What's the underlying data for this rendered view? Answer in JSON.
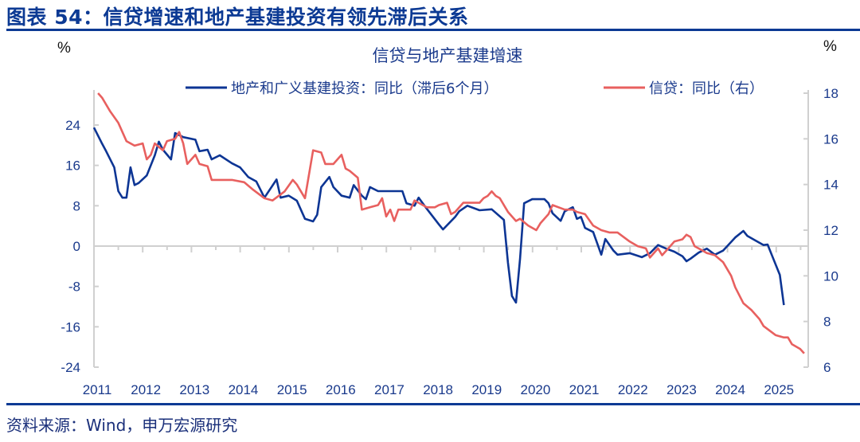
{
  "header": {
    "title": "图表 54：信贷增速和地产基建投资有领先滞后关系"
  },
  "footer": {
    "source": "资料来源：Wind，申万宏源研究"
  },
  "chart_data": {
    "type": "line",
    "title": "信贷与地产基建增速",
    "left_unit": "%",
    "right_unit": "%",
    "xlim": [
      "2011-01",
      "2025-09"
    ],
    "x_ticks": [
      "2011",
      "2012",
      "2013",
      "2014",
      "2015",
      "2016",
      "2017",
      "2018",
      "2019",
      "2020",
      "2021",
      "2022",
      "2023",
      "2024",
      "2025"
    ],
    "left_ylim": [
      -24,
      30
    ],
    "left_ticks": [
      "24",
      "16",
      "8",
      "0",
      "-8",
      "-16",
      "-24"
    ],
    "right_ylim": [
      6,
      18
    ],
    "right_ticks": [
      "18",
      "16",
      "14",
      "12",
      "10",
      "8",
      "6"
    ],
    "legend_position": "top",
    "grid": false,
    "series": [
      {
        "name": "地产和广义基建投资：同比（滞后6个月）",
        "axis": "left",
        "color": "#0d3594",
        "x": [
          "2011-01",
          "2011-03",
          "2011-04",
          "2011-06",
          "2011-07",
          "2011-08",
          "2011-09",
          "2011-10",
          "2011-11",
          "2011-12",
          "2012-02",
          "2012-04",
          "2012-05",
          "2012-06",
          "2012-08",
          "2012-09",
          "2012-11",
          "2013-02",
          "2013-03",
          "2013-05",
          "2013-06",
          "2013-08",
          "2013-11",
          "2014-01",
          "2014-03",
          "2014-05",
          "2014-07",
          "2014-10",
          "2014-11",
          "2015-01",
          "2015-03",
          "2015-05",
          "2015-07",
          "2015-08",
          "2015-09",
          "2015-11",
          "2015-12",
          "2016-02",
          "2016-04",
          "2016-05",
          "2016-07",
          "2016-08",
          "2016-09",
          "2016-11",
          "2017-02",
          "2017-05",
          "2017-06",
          "2017-08",
          "2017-09",
          "2017-11",
          "2018-02",
          "2018-03",
          "2018-06",
          "2018-07",
          "2018-09",
          "2018-12",
          "2019-03",
          "2019-06",
          "2019-07",
          "2019-08",
          "2019-09",
          "2019-10",
          "2019-11",
          "2020-01",
          "2020-04",
          "2020-05",
          "2020-06",
          "2020-08",
          "2020-09",
          "2020-11",
          "2020-12",
          "2021-01",
          "2021-02",
          "2021-04",
          "2021-06",
          "2021-07",
          "2021-09",
          "2021-10",
          "2022-01",
          "2022-04",
          "2022-06",
          "2022-08",
          "2022-10",
          "2022-12",
          "2023-02",
          "2023-03",
          "2023-04",
          "2023-06",
          "2023-08",
          "2023-10",
          "2023-12",
          "2024-03",
          "2024-05",
          "2024-06",
          "2024-08",
          "2024-10",
          "2024-11",
          "2024-12",
          "2025-02",
          "2025-03"
        ],
        "values": [
          23.5,
          20.3,
          18.8,
          15.6,
          10.9,
          9.6,
          9.6,
          15.6,
          12.1,
          12.5,
          14,
          18,
          20.7,
          19.1,
          17.2,
          22.4,
          21.6,
          21.1,
          18.8,
          19.1,
          17.2,
          18,
          16.4,
          15.6,
          13.7,
          12.8,
          9.6,
          13.2,
          9.6,
          10,
          9,
          5.4,
          4.9,
          6.2,
          11.7,
          13.7,
          11.7,
          10,
          9.6,
          12.1,
          10,
          9.3,
          11.7,
          10.9,
          10.9,
          10.9,
          8.5,
          8,
          9.6,
          7.4,
          4.3,
          3.3,
          5.8,
          6.9,
          8,
          7.1,
          7.3,
          5.2,
          -3.3,
          -9.9,
          -11.2,
          -2.5,
          8.5,
          9.3,
          9.3,
          8.5,
          6.5,
          5,
          6.9,
          7.7,
          5.4,
          5.8,
          3.6,
          2.8,
          -1.7,
          1.4,
          -0.9,
          -1.7,
          -1.4,
          -2.2,
          -1.4,
          0.2,
          -0.5,
          -1.1,
          -2,
          -3,
          -2.5,
          -1.3,
          -0.5,
          -1.7,
          -0.9,
          1.7,
          3,
          2,
          1.1,
          0.2,
          0.3,
          -1.7,
          -5.7,
          -11.7
        ]
      },
      {
        "name": "信贷：同比（右）",
        "axis": "right",
        "color": "#e8605f",
        "x": [
          "2011-02",
          "2011-03",
          "2011-05",
          "2011-07",
          "2011-09",
          "2011-11",
          "2012-01",
          "2012-02",
          "2012-03",
          "2012-04",
          "2012-06",
          "2012-07",
          "2012-09",
          "2012-10",
          "2012-11",
          "2012-12",
          "2013-02",
          "2013-03",
          "2013-05",
          "2013-06",
          "2013-08",
          "2013-10",
          "2013-11",
          "2014-02",
          "2014-04",
          "2014-07",
          "2014-09",
          "2014-12",
          "2015-02",
          "2015-03",
          "2015-05",
          "2015-07",
          "2015-09",
          "2015-10",
          "2015-12",
          "2016-02",
          "2016-03",
          "2016-04",
          "2016-06",
          "2016-07",
          "2016-09",
          "2016-11",
          "2016-12",
          "2017-01",
          "2017-02",
          "2017-03",
          "2017-04",
          "2017-07",
          "2017-08",
          "2017-09",
          "2017-11",
          "2018-01",
          "2018-02",
          "2018-04",
          "2018-05",
          "2018-06",
          "2018-08",
          "2018-10",
          "2018-11",
          "2018-12",
          "2019-01",
          "2019-02",
          "2019-03",
          "2019-04",
          "2019-05",
          "2019-07",
          "2019-09",
          "2019-10",
          "2019-12",
          "2020-02",
          "2020-03",
          "2020-05",
          "2020-06",
          "2020-09",
          "2020-11",
          "2020-12",
          "2021-02",
          "2021-04",
          "2021-06",
          "2021-08",
          "2021-10",
          "2022-01",
          "2022-03",
          "2022-05",
          "2022-06",
          "2022-08",
          "2022-09",
          "2022-11",
          "2022-12",
          "2023-02",
          "2023-03",
          "2023-04",
          "2023-05",
          "2023-07",
          "2023-08",
          "2023-10",
          "2023-12",
          "2024-02",
          "2024-03",
          "2024-05",
          "2024-07",
          "2024-09",
          "2024-10",
          "2025-01",
          "2025-03",
          "2025-04",
          "2025-05",
          "2025-07",
          "2025-08"
        ],
        "values": [
          18,
          17.8,
          17.2,
          16.7,
          15.9,
          15.7,
          15.8,
          15.1,
          15.3,
          15.8,
          15.5,
          15.9,
          16,
          16.3,
          15.8,
          14.9,
          15.3,
          14.9,
          14.8,
          14.2,
          14.2,
          14.2,
          14.2,
          14.1,
          13.8,
          13.4,
          13.3,
          13.7,
          14.2,
          14,
          13.4,
          15.5,
          15.4,
          14.9,
          14.9,
          15.3,
          14.7,
          14.6,
          14.3,
          12.9,
          13,
          13.1,
          13.4,
          12.6,
          12.9,
          12.4,
          12.9,
          12.9,
          13.3,
          13.2,
          13,
          13,
          13.1,
          13.2,
          12.7,
          12.8,
          13.2,
          13.2,
          13.2,
          13.2,
          13.4,
          13.5,
          13.7,
          13.5,
          13.4,
          12.8,
          12.4,
          12.5,
          12.2,
          12,
          12.3,
          12.7,
          13.1,
          12.9,
          12.9,
          12.8,
          12.7,
          12.2,
          12,
          11.9,
          11.9,
          11.5,
          11.3,
          11.2,
          10.8,
          11.2,
          10.9,
          11.3,
          11.5,
          11.6,
          11.8,
          11.7,
          11.3,
          11.1,
          11,
          10.9,
          10.6,
          10,
          9.5,
          8.8,
          8.5,
          8.1,
          7.8,
          7.4,
          7.3,
          7.3,
          7,
          6.8,
          6.6
        ]
      }
    ]
  }
}
